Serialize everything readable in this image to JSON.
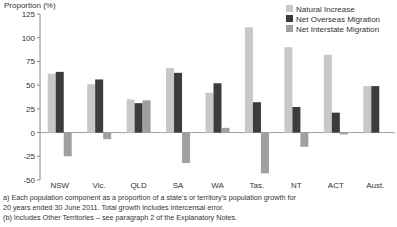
{
  "chart_data": {
    "type": "bar",
    "y_label": "Proportion (%)",
    "categories": [
      "NSW",
      "Vic.",
      "QLD",
      "SA",
      "WA",
      "Tas.",
      "NT",
      "ACT",
      "Aust."
    ],
    "series": [
      {
        "name": "Natural Increase",
        "color": "#c8c8c8",
        "values": [
          62,
          51,
          35,
          68,
          42,
          111,
          90,
          82,
          49
        ]
      },
      {
        "name": "Net Overseas Migration",
        "color": "#3c3c3c",
        "values": [
          64,
          56,
          31,
          63,
          52,
          32,
          27,
          21,
          49
        ]
      },
      {
        "name": "Net Interstate Migration",
        "color": "#a0a0a0",
        "values": [
          -25,
          -7,
          34,
          -32,
          5,
          -43,
          -15,
          -2,
          0
        ]
      }
    ],
    "ylim": [
      -50,
      125
    ],
    "yticks": [
      -50,
      -25,
      0,
      25,
      50,
      75,
      100,
      125
    ],
    "grid": false,
    "legend": "top-right",
    "notes": [
      "a) Each population component as a proportion of a state's or territory's population growth for",
      "20 years ended 30 June 2011. Total growth includes intercensal error.",
      "(b) Includes Other Territories – see paragraph 2 of the Explanatory Notes."
    ]
  }
}
